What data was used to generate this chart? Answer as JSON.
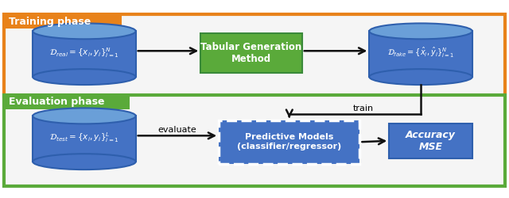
{
  "bg_color": "#ffffff",
  "training_box_color": "#E8821A",
  "evaluation_box_color": "#5aaa3a",
  "db_fill_color": "#4472C4",
  "db_edge_color": "#2E5FAD",
  "db_top_color": "#6A9FD8",
  "green_box_color": "#5aaa3a",
  "green_box_edge": "#3A8A3A",
  "blue_box_color": "#4472C4",
  "blue_box_edge": "#2E5FAD",
  "accuracy_box_color": "#4472C4",
  "accuracy_box_edge": "#2E5FAD",
  "arrow_color": "#111111",
  "training_label": "Training phase",
  "evaluation_label": "Evaluation phase",
  "tabgen_label": "Tabular Generation\nMethod",
  "predictive_label": "Predictive Models\n(classifier/regressor)",
  "accuracy_label": "Accuracy\nMSE",
  "train_arrow_label": "train",
  "evaluate_arrow_label": "evaluate",
  "d_real_label": "$\\mathcal{D}_{real} = \\{x_i, y_i\\}_{i=1}^{N}$",
  "d_fake_label": "$\\mathcal{D}_{fake} = \\{\\hat{x}_i, \\hat{y}_i\\}_{i=1}^{N}$",
  "d_test_label": "$\\mathcal{D}_{test} = \\{x_i, y_i\\}_{i=1}^{L}$",
  "fig_width": 6.4,
  "fig_height": 2.5,
  "dpi": 100
}
